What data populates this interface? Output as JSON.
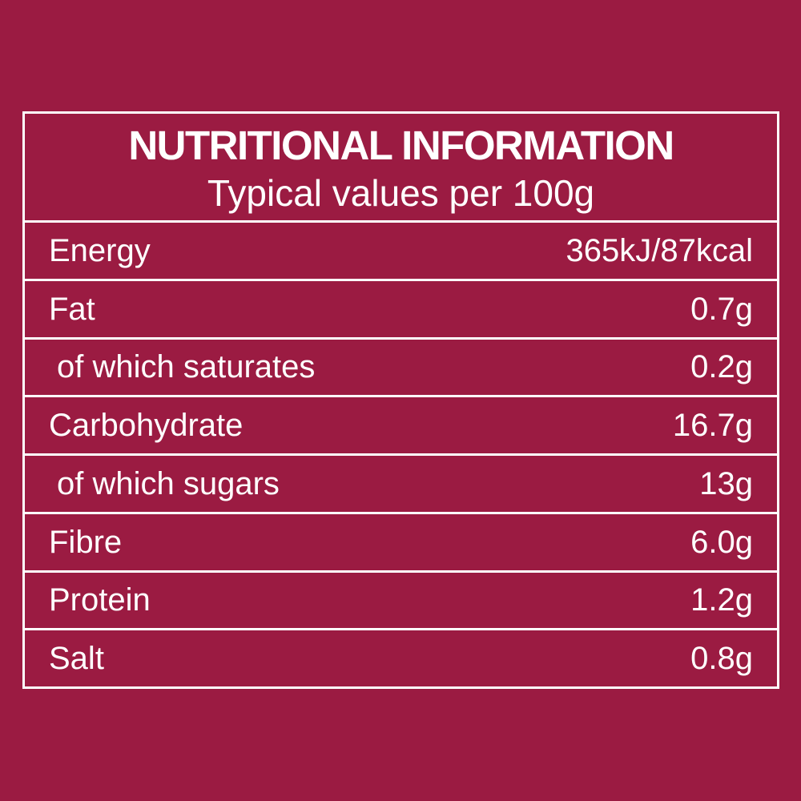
{
  "colors": {
    "background": "#9B1B42",
    "border": "#FFFFFF",
    "text": "#FFFFFF"
  },
  "label": {
    "title": "NUTRITIONAL INFORMATION",
    "subtitle": "Typical values per 100g",
    "rows": [
      {
        "name": "Energy",
        "value": "365kJ/87kcal",
        "indent": false
      },
      {
        "name": "Fat",
        "value": "0.7g",
        "indent": false
      },
      {
        "name": "of which saturates",
        "value": "0.2g",
        "indent": true
      },
      {
        "name": "Carbohydrate",
        "value": "16.7g",
        "indent": false
      },
      {
        "name": "of which sugars",
        "value": "13g",
        "indent": true
      },
      {
        "name": "Fibre",
        "value": "6.0g",
        "indent": false
      },
      {
        "name": "Protein",
        "value": "1.2g",
        "indent": false
      },
      {
        "name": "Salt",
        "value": "0.8g",
        "indent": false
      }
    ]
  }
}
